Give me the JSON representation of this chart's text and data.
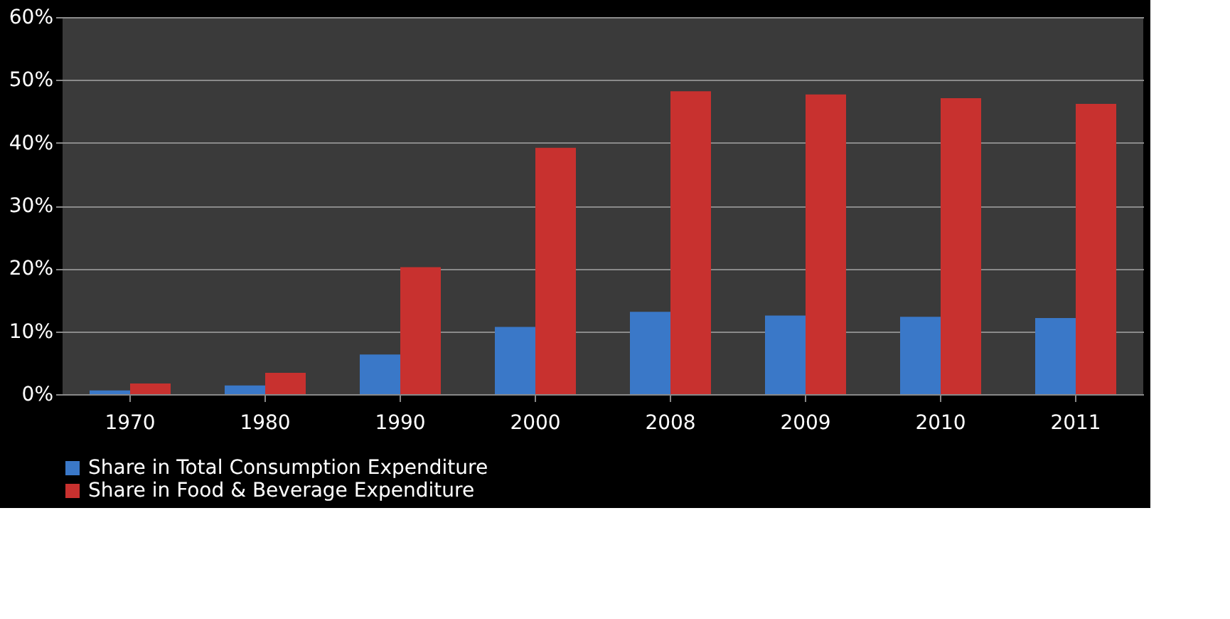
{
  "chart_data": {
    "type": "bar",
    "categories": [
      "1970",
      "1980",
      "1990",
      "2000",
      "2008",
      "2009",
      "2010",
      "2011"
    ],
    "series": [
      {
        "name": "Share in Total Consumption Expenditure",
        "color": "#3a78c8",
        "values": [
          0.6,
          1.4,
          6.3,
          10.7,
          13.1,
          12.5,
          12.3,
          12.1
        ]
      },
      {
        "name": "Share in Food & Beverage Expenditure",
        "color": "#c8312f",
        "values": [
          1.7,
          3.4,
          20.2,
          39.2,
          48.2,
          47.7,
          47.1,
          46.2
        ]
      }
    ],
    "ylim": [
      0,
      60
    ],
    "yticks": [
      {
        "value": 0,
        "label": "0%"
      },
      {
        "value": 10,
        "label": "10%"
      },
      {
        "value": 20,
        "label": "20%"
      },
      {
        "value": 30,
        "label": "30%"
      },
      {
        "value": 40,
        "label": "40%"
      },
      {
        "value": 50,
        "label": "50%"
      },
      {
        "value": 60,
        "label": "60%"
      }
    ],
    "grid": "y",
    "legend": "bottom"
  }
}
